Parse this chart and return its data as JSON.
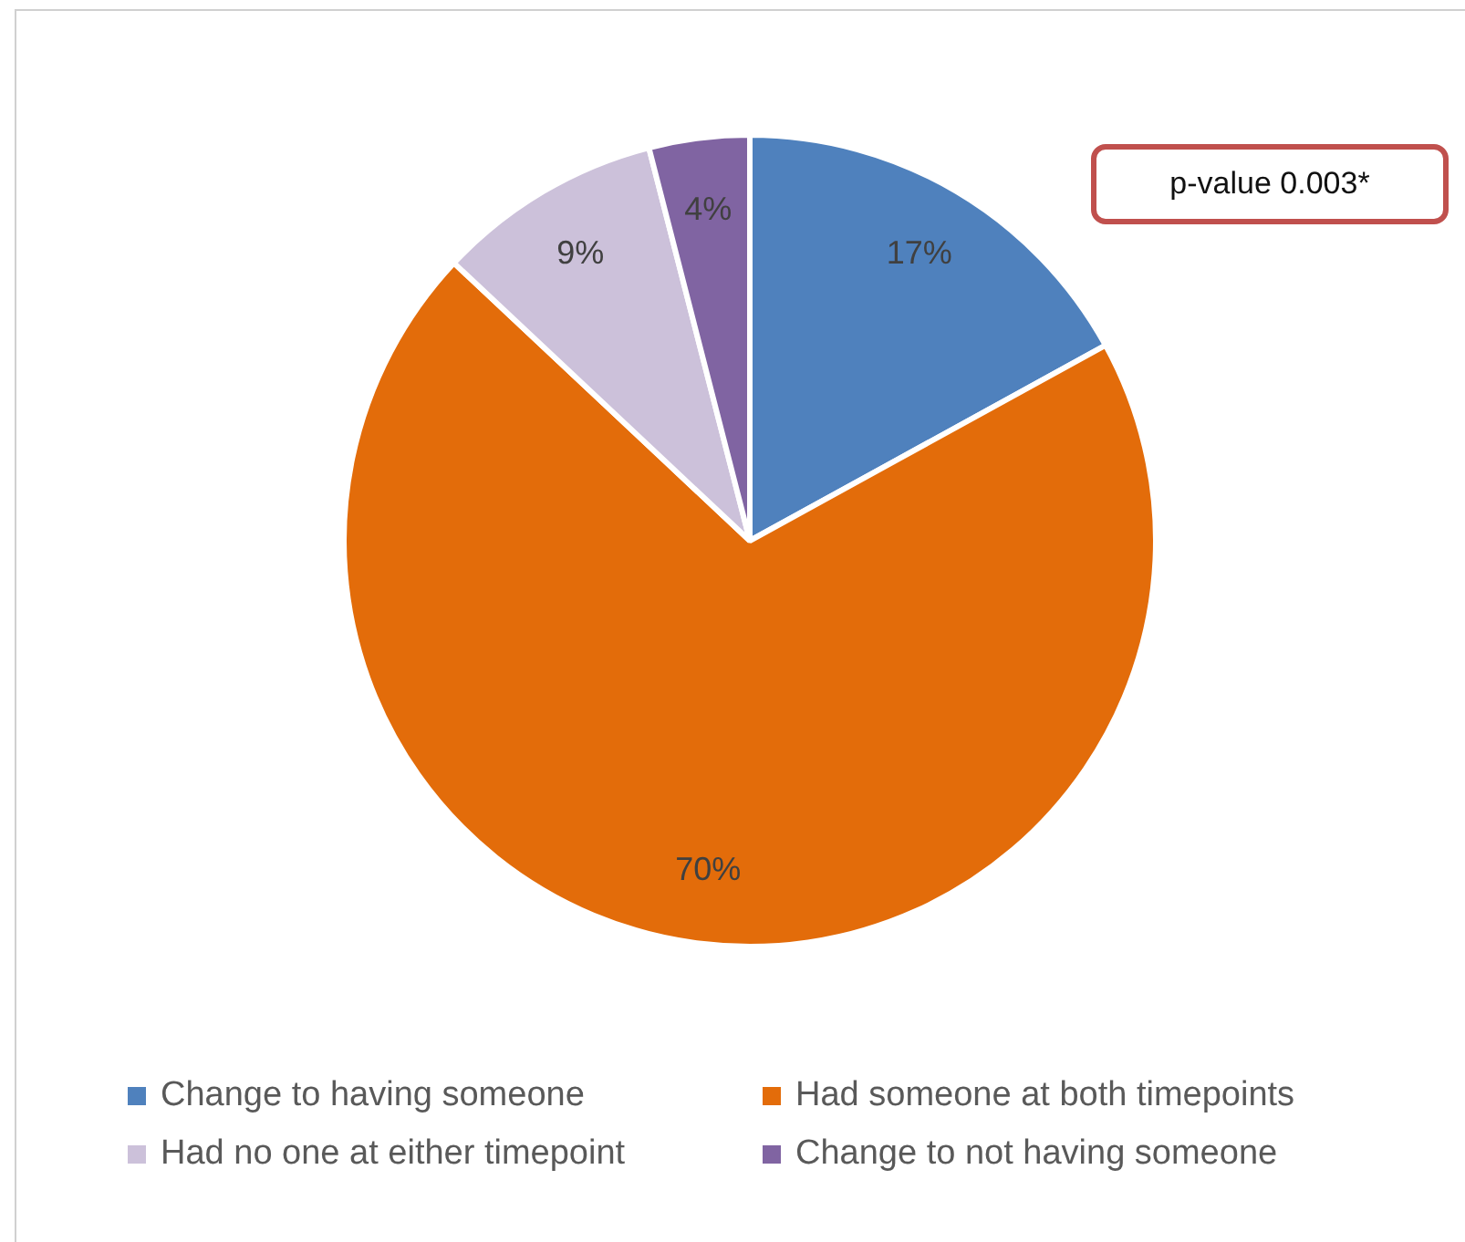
{
  "chart_data": {
    "type": "pie",
    "categories": [
      "Change to having someone",
      "Had someone at both timepoints",
      "Had no one at either timepoint",
      "Change to not having someone"
    ],
    "values": [
      17,
      70,
      9,
      4
    ],
    "colors": [
      "#4f81bd",
      "#e36c0a",
      "#ccc1da",
      "#8064a2"
    ],
    "value_labels": [
      "17%",
      "70%",
      "9%",
      "4%"
    ],
    "annotations": [
      "p-value 0.003*"
    ],
    "legend": "bottom"
  }
}
